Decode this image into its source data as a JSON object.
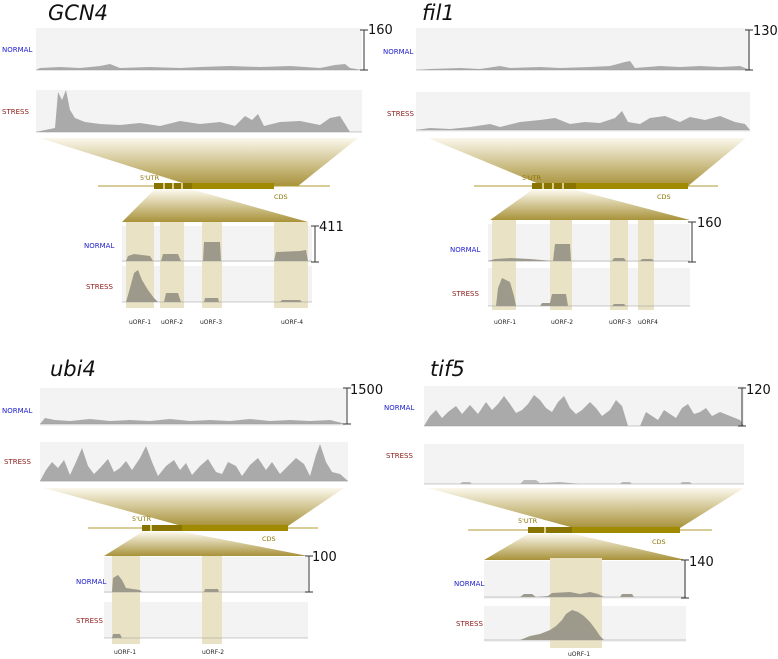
{
  "labels": {
    "normal": "NORMAL",
    "stress": "STRESS",
    "utr": "5'UTR",
    "cds": "CDS"
  },
  "colors": {
    "normal": "#2020cc",
    "stress": "#8b1a1a",
    "track": "#a9a9a9",
    "gene": "#a08a00",
    "highlight": "#e9e2c4",
    "zoom": "#b9a24a"
  },
  "panels": [
    {
      "gene": "GCN4",
      "top_scale": "160",
      "zoom_scale": "411",
      "uorfs": [
        "uORF-1",
        "uORF-2",
        "uORF-3",
        "uORF-4"
      ]
    },
    {
      "gene": "fil1",
      "top_scale": "130",
      "zoom_scale": "160",
      "uorfs": [
        "uORF-1",
        "uORF-2",
        "uORF-3",
        "uORF4"
      ]
    },
    {
      "gene": "ubi4",
      "top_scale": "1500",
      "zoom_scale": "100",
      "uorfs": [
        "uORF-1",
        "uORF-2"
      ]
    },
    {
      "gene": "tif5",
      "top_scale": "120",
      "zoom_scale": "140",
      "uorfs": [
        "uORF-1"
      ]
    }
  ]
}
